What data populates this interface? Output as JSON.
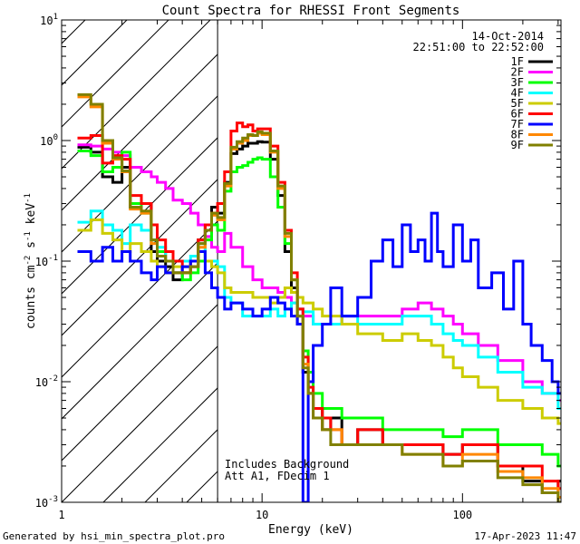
{
  "chart_data": {
    "type": "line",
    "title": "Count Spectra for RHESSI Front Segments",
    "xlabel": "Energy (keV)",
    "ylabel_parts": [
      "counts cm",
      "-2",
      " s",
      "-1",
      " keV",
      "-1"
    ],
    "xscale": "log",
    "yscale": "log",
    "xlim": [
      1,
      310
    ],
    "ylim": [
      0.001,
      10
    ],
    "x_ticks": [
      {
        "value": 1,
        "label": "1"
      },
      {
        "value": 10,
        "label": "10"
      },
      {
        "value": 100,
        "label": "100"
      }
    ],
    "y_ticks": [
      {
        "value": 10,
        "base": "10",
        "exp": "1"
      },
      {
        "value": 1,
        "base": "10",
        "exp": "0"
      },
      {
        "value": 0.1,
        "base": "10",
        "exp": "-1"
      },
      {
        "value": 0.01,
        "base": "10",
        "exp": "-2"
      },
      {
        "value": 0.001,
        "base": "10",
        "exp": "-3"
      }
    ],
    "attenuator_cutoff_kev": 6,
    "date": "14-Oct-2014",
    "time_range": "22:51:00 to 22:52:00",
    "annotation_lines": [
      "Includes Background",
      "Att A1, FDecim 1"
    ],
    "footer_left": "Generated by hsi_min_spectra_plot.pro",
    "footer_right": "17-Apr-2023 11:47",
    "legend_position": "top-right",
    "series": [
      {
        "name": "1F",
        "color": "#000000",
        "x": [
          1.2,
          1.4,
          1.6,
          1.8,
          2.0,
          2.2,
          2.5,
          2.8,
          3.0,
          3.3,
          3.6,
          4.0,
          4.4,
          4.8,
          5.2,
          5.6,
          6.0,
          6.5,
          7.0,
          7.5,
          8.0,
          8.5,
          9.0,
          9.5,
          10,
          11,
          12,
          13,
          14,
          15,
          16,
          17,
          18,
          20,
          22,
          25,
          30,
          40,
          50,
          60,
          80,
          100,
          150,
          200,
          250,
          300
        ],
        "values": [
          0.88,
          0.8,
          0.5,
          0.45,
          0.6,
          0.28,
          0.3,
          0.12,
          0.1,
          0.09,
          0.07,
          0.08,
          0.09,
          0.15,
          0.2,
          0.28,
          0.25,
          0.45,
          0.78,
          0.85,
          0.9,
          0.95,
          0.95,
          0.98,
          0.97,
          0.7,
          0.35,
          0.12,
          0.06,
          0.03,
          0.012,
          0.008,
          0.006,
          0.004,
          0.005,
          0.003,
          0.004,
          0.003,
          0.003,
          0.003,
          0.0025,
          0.003,
          0.002,
          0.0015,
          0.0012,
          0.0015
        ]
      },
      {
        "name": "2F",
        "color": "#ff00ff",
        "x": [
          1.2,
          1.4,
          1.6,
          1.8,
          2.0,
          2.2,
          2.5,
          2.8,
          3.0,
          3.3,
          3.6,
          4.0,
          4.4,
          4.8,
          5.2,
          5.6,
          6.0,
          6.5,
          7.0,
          8.0,
          9.0,
          10,
          11,
          12,
          13,
          14,
          15,
          16,
          18,
          20,
          25,
          30,
          40,
          50,
          60,
          70,
          80,
          90,
          100,
          120,
          150,
          200,
          250,
          300
        ],
        "values": [
          0.92,
          0.9,
          0.85,
          0.8,
          0.75,
          0.6,
          0.55,
          0.5,
          0.45,
          0.4,
          0.32,
          0.3,
          0.25,
          0.2,
          0.16,
          0.13,
          0.12,
          0.17,
          0.13,
          0.09,
          0.07,
          0.06,
          0.06,
          0.055,
          0.05,
          0.045,
          0.04,
          0.035,
          0.03,
          0.03,
          0.035,
          0.035,
          0.035,
          0.04,
          0.045,
          0.04,
          0.035,
          0.03,
          0.025,
          0.02,
          0.015,
          0.01,
          0.008,
          0.007
        ]
      },
      {
        "name": "3F",
        "color": "#00ff00",
        "x": [
          1.2,
          1.4,
          1.6,
          1.8,
          2.0,
          2.2,
          2.5,
          2.8,
          3.0,
          3.3,
          3.6,
          4.0,
          4.4,
          4.8,
          5.2,
          5.6,
          6.0,
          6.5,
          7.0,
          7.5,
          8.0,
          8.5,
          9.0,
          9.5,
          10,
          11,
          12,
          13,
          14,
          15,
          16,
          17,
          18,
          20,
          22,
          25,
          30,
          40,
          50,
          60,
          80,
          100,
          150,
          200,
          250,
          300
        ],
        "values": [
          0.82,
          0.75,
          0.55,
          0.6,
          0.8,
          0.3,
          0.25,
          0.15,
          0.12,
          0.1,
          0.08,
          0.07,
          0.08,
          0.1,
          0.15,
          0.2,
          0.18,
          0.38,
          0.55,
          0.6,
          0.62,
          0.66,
          0.7,
          0.72,
          0.7,
          0.5,
          0.28,
          0.14,
          0.07,
          0.035,
          0.018,
          0.012,
          0.008,
          0.006,
          0.006,
          0.005,
          0.005,
          0.004,
          0.004,
          0.004,
          0.0035,
          0.004,
          0.003,
          0.003,
          0.0025,
          0.002
        ]
      },
      {
        "name": "4F",
        "color": "#00ffff",
        "x": [
          1.2,
          1.4,
          1.6,
          1.8,
          2.0,
          2.2,
          2.5,
          2.8,
          3.0,
          3.3,
          3.6,
          4.0,
          4.4,
          4.8,
          5.2,
          5.6,
          6.0,
          6.5,
          7.0,
          8.0,
          9.0,
          10,
          11,
          12,
          13,
          14,
          15,
          16,
          18,
          20,
          25,
          30,
          40,
          50,
          60,
          70,
          80,
          90,
          100,
          120,
          150,
          200,
          250,
          300
        ],
        "values": [
          0.21,
          0.26,
          0.2,
          0.18,
          0.14,
          0.2,
          0.18,
          0.15,
          0.13,
          0.1,
          0.1,
          0.1,
          0.11,
          0.14,
          0.1,
          0.1,
          0.09,
          0.05,
          0.045,
          0.035,
          0.035,
          0.035,
          0.04,
          0.035,
          0.04,
          0.045,
          0.04,
          0.038,
          0.03,
          0.03,
          0.035,
          0.03,
          0.03,
          0.035,
          0.035,
          0.03,
          0.025,
          0.022,
          0.02,
          0.016,
          0.012,
          0.009,
          0.008,
          0.006
        ]
      },
      {
        "name": "5F",
        "color": "#cccc00",
        "x": [
          1.2,
          1.4,
          1.6,
          1.8,
          2.0,
          2.2,
          2.5,
          2.8,
          3.0,
          3.3,
          3.6,
          4.0,
          4.4,
          4.8,
          5.2,
          5.6,
          6.0,
          6.5,
          7.0,
          8.0,
          9.0,
          10,
          11,
          12,
          13,
          14,
          15,
          16,
          18,
          20,
          25,
          30,
          40,
          50,
          60,
          70,
          80,
          90,
          100,
          120,
          150,
          200,
          250,
          300
        ],
        "values": [
          0.18,
          0.22,
          0.17,
          0.15,
          0.12,
          0.14,
          0.12,
          0.1,
          0.09,
          0.08,
          0.09,
          0.09,
          0.1,
          0.12,
          0.1,
          0.09,
          0.08,
          0.06,
          0.055,
          0.055,
          0.05,
          0.05,
          0.045,
          0.05,
          0.06,
          0.055,
          0.05,
          0.045,
          0.04,
          0.035,
          0.03,
          0.025,
          0.022,
          0.025,
          0.022,
          0.02,
          0.016,
          0.013,
          0.011,
          0.009,
          0.007,
          0.006,
          0.005,
          0.0045
        ]
      },
      {
        "name": "6F",
        "color": "#ff0000",
        "x": [
          1.2,
          1.4,
          1.6,
          1.8,
          2.0,
          2.2,
          2.5,
          2.8,
          3.0,
          3.3,
          3.6,
          4.0,
          4.4,
          4.8,
          5.2,
          5.6,
          6.0,
          6.5,
          7.0,
          7.5,
          8.0,
          8.5,
          9.0,
          9.5,
          10,
          11,
          12,
          13,
          14,
          15,
          16,
          17,
          18,
          20,
          22,
          25,
          30,
          40,
          50,
          60,
          80,
          100,
          150,
          200,
          250,
          300
        ],
        "values": [
          1.05,
          1.1,
          0.65,
          0.75,
          0.7,
          0.35,
          0.3,
          0.2,
          0.15,
          0.12,
          0.1,
          0.08,
          0.1,
          0.15,
          0.2,
          0.25,
          0.3,
          0.55,
          1.2,
          1.4,
          1.3,
          1.35,
          1.2,
          1.25,
          1.25,
          0.9,
          0.45,
          0.18,
          0.08,
          0.04,
          0.016,
          0.009,
          0.006,
          0.005,
          0.004,
          0.003,
          0.004,
          0.003,
          0.003,
          0.003,
          0.0025,
          0.003,
          0.002,
          0.002,
          0.0015,
          0.0013
        ]
      },
      {
        "name": "7F",
        "color": "#0000ff",
        "x": [
          1.2,
          1.4,
          1.6,
          1.8,
          2.0,
          2.2,
          2.5,
          2.8,
          3.0,
          3.3,
          3.6,
          4.0,
          4.4,
          4.8,
          5.2,
          5.6,
          6.0,
          6.5,
          7.0,
          8.0,
          9.0,
          10,
          11,
          12,
          13,
          14,
          15,
          16,
          17,
          18,
          20,
          22,
          25,
          30,
          35,
          40,
          45,
          50,
          55,
          60,
          65,
          70,
          75,
          80,
          90,
          100,
          110,
          120,
          140,
          160,
          180,
          200,
          220,
          250,
          280,
          300
        ],
        "values": [
          0.12,
          0.1,
          0.13,
          0.1,
          0.12,
          0.1,
          0.08,
          0.07,
          0.09,
          0.08,
          0.08,
          0.09,
          0.1,
          0.12,
          0.08,
          0.06,
          0.05,
          0.04,
          0.045,
          0.04,
          0.035,
          0.04,
          0.05,
          0.045,
          0.04,
          0.035,
          0.03,
          0.001,
          0.01,
          0.02,
          0.03,
          0.06,
          0.035,
          0.05,
          0.1,
          0.15,
          0.09,
          0.2,
          0.12,
          0.15,
          0.1,
          0.25,
          0.12,
          0.09,
          0.2,
          0.1,
          0.15,
          0.06,
          0.08,
          0.04,
          0.1,
          0.03,
          0.02,
          0.015,
          0.01,
          0.008
        ]
      },
      {
        "name": "8F",
        "color": "#ff8800",
        "x": [
          1.2,
          1.4,
          1.6,
          1.8,
          2.0,
          2.2,
          2.5,
          2.8,
          3.0,
          3.3,
          3.6,
          4.0,
          4.4,
          4.8,
          5.2,
          5.6,
          6.0,
          6.5,
          7.0,
          7.5,
          8.0,
          8.5,
          9.0,
          9.5,
          10,
          11,
          12,
          13,
          14,
          15,
          16,
          17,
          18,
          20,
          22,
          25,
          30,
          40,
          50,
          60,
          80,
          100,
          150,
          200,
          250,
          300
        ],
        "values": [
          2.3,
          1.9,
          0.95,
          0.7,
          0.55,
          0.27,
          0.25,
          0.14,
          0.11,
          0.1,
          0.08,
          0.08,
          0.09,
          0.13,
          0.18,
          0.24,
          0.22,
          0.42,
          0.85,
          0.95,
          1.0,
          1.1,
          1.1,
          1.15,
          1.12,
          0.8,
          0.4,
          0.16,
          0.07,
          0.035,
          0.014,
          0.008,
          0.005,
          0.004,
          0.004,
          0.003,
          0.003,
          0.003,
          0.0025,
          0.0025,
          0.002,
          0.0025,
          0.0018,
          0.0016,
          0.0013,
          0.0011
        ]
      },
      {
        "name": "9F",
        "color": "#808000",
        "x": [
          1.2,
          1.4,
          1.6,
          1.8,
          2.0,
          2.2,
          2.5,
          2.8,
          3.0,
          3.3,
          3.6,
          4.0,
          4.4,
          4.8,
          5.2,
          5.6,
          6.0,
          6.5,
          7.0,
          7.5,
          8.0,
          8.5,
          9.0,
          9.5,
          10,
          11,
          12,
          13,
          14,
          15,
          16,
          17,
          18,
          20,
          22,
          25,
          30,
          40,
          50,
          60,
          80,
          100,
          150,
          200,
          250,
          300
        ],
        "values": [
          2.4,
          2.0,
          1.0,
          0.72,
          0.56,
          0.28,
          0.26,
          0.15,
          0.11,
          0.1,
          0.08,
          0.08,
          0.09,
          0.14,
          0.18,
          0.25,
          0.23,
          0.44,
          0.88,
          0.98,
          1.05,
          1.12,
          1.1,
          1.18,
          1.15,
          0.82,
          0.42,
          0.17,
          0.07,
          0.035,
          0.013,
          0.008,
          0.005,
          0.004,
          0.003,
          0.003,
          0.003,
          0.003,
          0.0025,
          0.0025,
          0.002,
          0.0022,
          0.0016,
          0.0014,
          0.0012,
          0.001
        ]
      }
    ]
  }
}
